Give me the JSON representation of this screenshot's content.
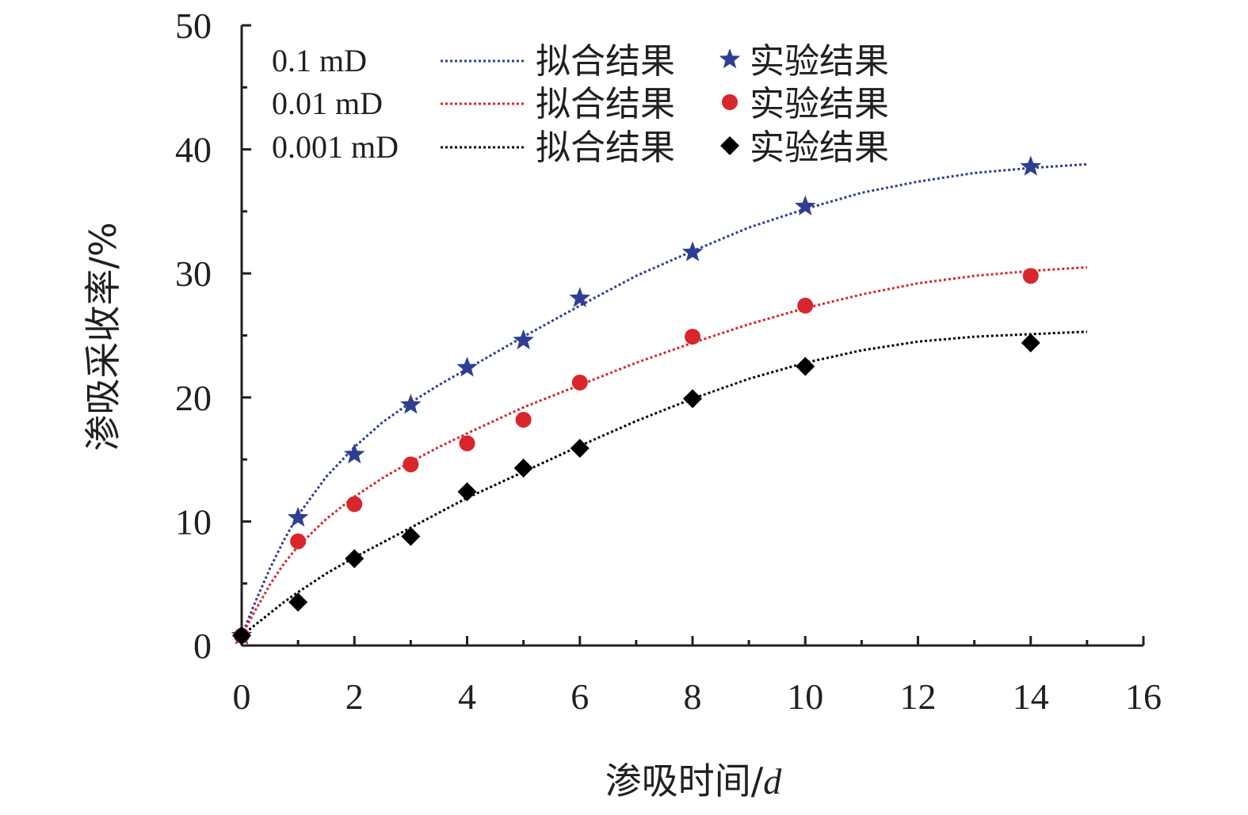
{
  "chart_data": {
    "type": "scatter",
    "xlabel_prefix": "渗吸时间/",
    "xlabel_unit": "d",
    "ylabel": "渗吸采收率/%",
    "xlim": [
      0,
      16
    ],
    "ylim": [
      0,
      50
    ],
    "x_ticks": [
      "0",
      "2",
      "4",
      "6",
      "8",
      "10",
      "12",
      "14",
      "16"
    ],
    "y_ticks": [
      "0",
      "10",
      "20",
      "30",
      "40",
      "50"
    ],
    "legend_position": "top-left",
    "series": [
      {
        "name": "0.1 mD",
        "fit_label": "拟合结果",
        "exp_label": "实验结果",
        "color": "#2e3f92",
        "marker": "star",
        "x": [
          0,
          1,
          2,
          3,
          4,
          5,
          6,
          8,
          10,
          14
        ],
        "y": [
          0.8,
          10.3,
          15.4,
          19.4,
          22.4,
          24.6,
          28.0,
          31.7,
          35.4,
          38.6
        ],
        "fit_x": [
          0,
          0.25,
          0.5,
          0.75,
          1,
          1.5,
          2,
          2.5,
          3,
          3.5,
          4,
          5,
          6,
          7,
          8,
          9,
          10,
          11,
          12,
          13,
          14,
          15
        ],
        "fit_y": [
          0.8,
          3.6,
          6.2,
          8.5,
          10.5,
          13.6,
          16.0,
          18.0,
          19.6,
          21.0,
          22.3,
          24.9,
          27.4,
          29.8,
          31.8,
          33.7,
          35.2,
          36.5,
          37.4,
          38.1,
          38.5,
          38.8
        ]
      },
      {
        "name": "0.01 mD",
        "fit_label": "拟合结果",
        "exp_label": "实验结果",
        "color": "#d8262c",
        "marker": "circle",
        "x": [
          0,
          1,
          2,
          3,
          4,
          5,
          6,
          8,
          10,
          14
        ],
        "y": [
          0.8,
          8.4,
          11.4,
          14.6,
          16.3,
          18.2,
          21.2,
          24.9,
          27.4,
          29.8
        ],
        "fit_x": [
          0,
          0.25,
          0.5,
          0.75,
          1,
          1.5,
          2,
          2.5,
          3,
          3.5,
          4,
          5,
          6,
          7,
          8,
          9,
          10,
          11,
          12,
          13,
          14,
          15
        ],
        "fit_y": [
          0.8,
          2.9,
          4.9,
          6.6,
          8.0,
          10.2,
          12.0,
          13.5,
          14.8,
          16.0,
          17.1,
          19.2,
          21.0,
          22.8,
          24.4,
          25.9,
          27.2,
          28.3,
          29.2,
          29.8,
          30.2,
          30.5
        ]
      },
      {
        "name": "0.001 mD",
        "fit_label": "拟合结果",
        "exp_label": "实验结果",
        "color": "#000000",
        "marker": "diamond",
        "x": [
          0,
          1,
          2,
          3,
          4,
          5,
          6,
          8,
          10,
          14
        ],
        "y": [
          0.8,
          3.5,
          7.0,
          8.8,
          12.4,
          14.3,
          15.9,
          19.9,
          22.5,
          24.4
        ],
        "fit_x": [
          0,
          0.25,
          0.5,
          0.75,
          1,
          1.5,
          2,
          2.5,
          3,
          3.5,
          4,
          5,
          6,
          7,
          8,
          9,
          10,
          11,
          12,
          13,
          14,
          15
        ],
        "fit_y": [
          0.8,
          1.7,
          2.6,
          3.5,
          4.3,
          5.8,
          7.1,
          8.3,
          9.5,
          10.7,
          11.9,
          14.0,
          16.1,
          18.1,
          19.9,
          21.5,
          22.8,
          23.8,
          24.5,
          24.9,
          25.1,
          25.3
        ]
      }
    ]
  }
}
